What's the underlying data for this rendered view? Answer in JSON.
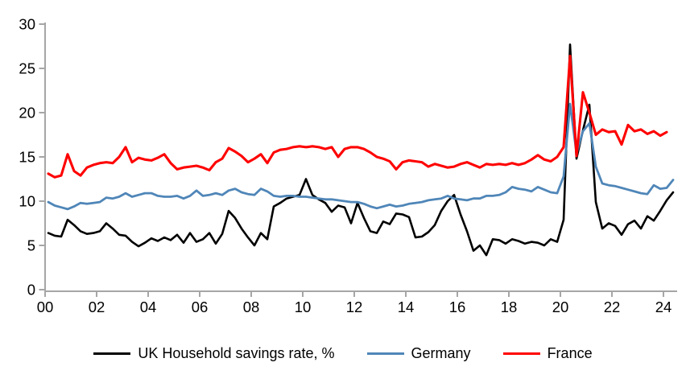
{
  "chart_data": {
    "type": "line",
    "title": "",
    "frequency": "quarterly",
    "x_start": 2000,
    "x_step": 0.25,
    "x_axis": {
      "tick_years": [
        2000,
        2002,
        2004,
        2006,
        2008,
        2010,
        2012,
        2014,
        2016,
        2018,
        2020,
        2022,
        2024
      ],
      "tick_labels": [
        "00",
        "02",
        "04",
        "06",
        "08",
        "10",
        "12",
        "14",
        "16",
        "18",
        "20",
        "22",
        "24"
      ]
    },
    "y_axis": {
      "ticks": [
        0,
        5,
        10,
        15,
        20,
        25,
        30
      ],
      "tick_labels": [
        "0",
        "5",
        "10",
        "15",
        "20",
        "25",
        "30"
      ],
      "range": [
        0,
        30
      ]
    },
    "grid": false,
    "legend_position": "bottom",
    "series": [
      {
        "name": "UK Household savings rate, %",
        "color": "#000000",
        "stroke_width": 2.6,
        "values": [
          6.4,
          6.1,
          6.0,
          7.9,
          7.3,
          6.6,
          6.3,
          6.4,
          6.6,
          7.5,
          6.9,
          6.2,
          6.1,
          5.4,
          4.9,
          5.3,
          5.8,
          5.5,
          5.9,
          5.6,
          6.2,
          5.3,
          6.4,
          5.4,
          5.7,
          6.4,
          5.2,
          6.3,
          8.9,
          8.1,
          6.9,
          5.9,
          5.0,
          6.4,
          5.7,
          9.4,
          9.8,
          10.3,
          10.5,
          10.7,
          12.5,
          10.7,
          10.2,
          9.8,
          8.8,
          9.5,
          9.3,
          7.5,
          9.8,
          8.1,
          6.6,
          6.4,
          7.7,
          7.4,
          8.6,
          8.5,
          8.2,
          5.9,
          6.0,
          6.5,
          7.3,
          8.9,
          10.0,
          10.7,
          8.5,
          6.6,
          4.4,
          5.0,
          3.9,
          5.7,
          5.6,
          5.2,
          5.7,
          5.5,
          5.2,
          5.4,
          5.3,
          5.0,
          5.7,
          5.4,
          7.9,
          27.7,
          14.8,
          18.0,
          20.9,
          9.9,
          6.9,
          7.5,
          7.2,
          6.2,
          7.4,
          7.8,
          6.9,
          8.3,
          7.8,
          8.9,
          10.1,
          11.0
        ]
      },
      {
        "name": "Germany",
        "color": "#4f86b8",
        "stroke_width": 2.8,
        "values": [
          9.9,
          9.5,
          9.3,
          9.1,
          9.4,
          9.8,
          9.7,
          9.8,
          9.9,
          10.4,
          10.3,
          10.5,
          10.9,
          10.5,
          10.7,
          10.9,
          10.9,
          10.6,
          10.5,
          10.5,
          10.6,
          10.3,
          10.6,
          11.2,
          10.6,
          10.7,
          10.9,
          10.7,
          11.2,
          11.4,
          11.0,
          10.8,
          10.7,
          11.4,
          11.1,
          10.6,
          10.5,
          10.6,
          10.6,
          10.5,
          10.5,
          10.4,
          10.3,
          10.2,
          10.2,
          10.1,
          10.0,
          9.9,
          9.9,
          9.7,
          9.4,
          9.2,
          9.4,
          9.6,
          9.4,
          9.5,
          9.7,
          9.8,
          9.9,
          10.1,
          10.2,
          10.3,
          10.6,
          10.3,
          10.2,
          10.1,
          10.3,
          10.3,
          10.6,
          10.6,
          10.7,
          11.0,
          11.6,
          11.4,
          11.3,
          11.1,
          11.6,
          11.3,
          11.0,
          10.9,
          12.8,
          21.0,
          15.4,
          17.9,
          18.8,
          13.9,
          12.0,
          11.8,
          11.7,
          11.5,
          11.3,
          11.1,
          10.9,
          10.8,
          11.8,
          11.4,
          11.5,
          12.4
        ]
      },
      {
        "name": "France",
        "color": "#ff0000",
        "stroke_width": 3.1,
        "values": [
          13.1,
          12.7,
          12.9,
          15.3,
          13.4,
          12.9,
          13.8,
          14.1,
          14.3,
          14.4,
          14.3,
          15.0,
          16.1,
          14.4,
          14.9,
          14.7,
          14.6,
          14.9,
          15.3,
          14.3,
          13.6,
          13.8,
          13.9,
          14.0,
          13.8,
          13.5,
          14.4,
          14.8,
          16.0,
          15.6,
          15.1,
          14.4,
          14.8,
          15.3,
          14.3,
          15.5,
          15.8,
          15.9,
          16.1,
          16.2,
          16.1,
          16.2,
          16.1,
          15.9,
          16.1,
          15.0,
          15.9,
          16.1,
          16.1,
          15.9,
          15.5,
          15.0,
          14.8,
          14.5,
          13.6,
          14.4,
          14.6,
          14.5,
          14.4,
          13.9,
          14.2,
          14.0,
          13.8,
          13.9,
          14.2,
          14.4,
          14.1,
          13.8,
          14.2,
          14.1,
          14.2,
          14.1,
          14.3,
          14.1,
          14.3,
          14.7,
          15.2,
          14.7,
          14.5,
          15.0,
          16.1,
          26.4,
          15.1,
          22.3,
          20.0,
          17.5,
          18.1,
          17.8,
          17.9,
          16.4,
          18.6,
          17.9,
          18.1,
          17.6,
          17.9,
          17.4,
          17.8
        ]
      }
    ]
  },
  "legend": {
    "items": [
      {
        "label": "UK Household savings rate, %",
        "color": "#000000"
      },
      {
        "label": "Germany",
        "color": "#4f86b8"
      },
      {
        "label": "France",
        "color": "#ff0000"
      }
    ]
  },
  "colors": {
    "axis": "#a6a6a6",
    "tick_text": "#000000",
    "background": "#ffffff"
  }
}
